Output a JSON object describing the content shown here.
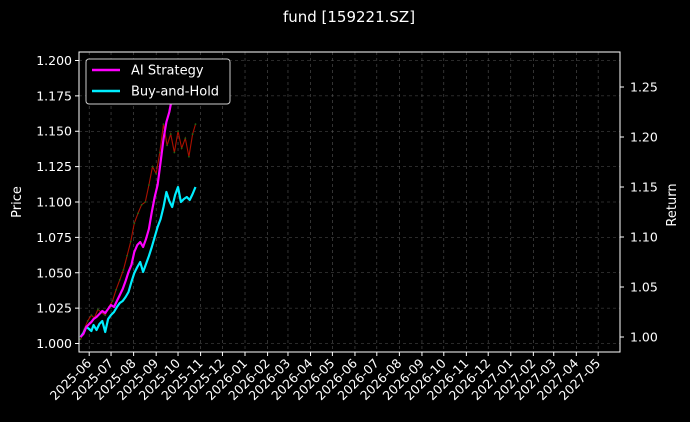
{
  "chart_data": {
    "type": "line",
    "title": "fund [159221.SZ]",
    "ylabel_left": "Price",
    "ylabel_right": "Return",
    "xlabel": "",
    "grid": true,
    "legend_position": "top-left",
    "left_ylim": [
      0.994,
      1.206
    ],
    "left_yticks": [
      1.0,
      1.025,
      1.05,
      1.075,
      1.1,
      1.125,
      1.15,
      1.175,
      1.2
    ],
    "left_ytick_labels": [
      "1.000",
      "1.025",
      "1.050",
      "1.075",
      "1.100",
      "1.125",
      "1.150",
      "1.175",
      "1.200"
    ],
    "right_ylim": [
      0.985,
      1.285
    ],
    "right_yticks": [
      1.0,
      1.05,
      1.1,
      1.15,
      1.2,
      1.25
    ],
    "right_ytick_labels": [
      "1.00",
      "1.05",
      "1.10",
      "1.15",
      "1.20",
      "1.25"
    ],
    "x_ticks": [
      "2025-06",
      "2025-07",
      "2025-08",
      "2025-09",
      "2025-10",
      "2025-11",
      "2025-12",
      "2026-01",
      "2026-02",
      "2026-03",
      "2026-04",
      "2026-05",
      "2026-06",
      "2026-07",
      "2026-08",
      "2026-09",
      "2026-10",
      "2026-11",
      "2026-12",
      "2027-01",
      "2027-02",
      "2027-03",
      "2027-04",
      "2027-05"
    ],
    "x_range": [
      "2025-05-18",
      "2027-05-31"
    ],
    "series": [
      {
        "name": "AI Strategy",
        "axis": "right",
        "color": "#ff00ff",
        "points": [
          [
            "2025-05-20",
            1.0
          ],
          [
            "2025-05-24",
            1.003
          ],
          [
            "2025-05-28",
            1.01
          ],
          [
            "2025-06-01",
            1.013
          ],
          [
            "2025-06-04",
            1.015
          ],
          [
            "2025-06-07",
            1.018
          ],
          [
            "2025-06-11",
            1.02
          ],
          [
            "2025-06-15",
            1.023
          ],
          [
            "2025-06-19",
            1.026
          ],
          [
            "2025-06-23",
            1.024
          ],
          [
            "2025-06-27",
            1.028
          ],
          [
            "2025-07-01",
            1.032
          ],
          [
            "2025-07-05",
            1.03
          ],
          [
            "2025-07-09",
            1.036
          ],
          [
            "2025-07-13",
            1.042
          ],
          [
            "2025-07-17",
            1.048
          ],
          [
            "2025-07-21",
            1.056
          ],
          [
            "2025-07-25",
            1.065
          ],
          [
            "2025-07-29",
            1.072
          ],
          [
            "2025-08-02",
            1.085
          ],
          [
            "2025-08-06",
            1.092
          ],
          [
            "2025-08-10",
            1.095
          ],
          [
            "2025-08-14",
            1.09
          ],
          [
            "2025-08-18",
            1.098
          ],
          [
            "2025-08-22",
            1.108
          ],
          [
            "2025-08-26",
            1.125
          ],
          [
            "2025-08-30",
            1.14
          ],
          [
            "2025-09-03",
            1.152
          ],
          [
            "2025-09-07",
            1.175
          ],
          [
            "2025-09-11",
            1.198
          ],
          [
            "2025-09-15",
            1.215
          ],
          [
            "2025-09-19",
            1.225
          ],
          [
            "2025-09-23",
            1.24
          ],
          [
            "2025-09-27",
            1.247
          ],
          [
            "2025-09-30",
            1.25
          ]
        ]
      },
      {
        "name": "Buy-and-Hold",
        "axis": "right",
        "color": "#00eeff",
        "points": [
          [
            "2025-05-20",
            1.0
          ],
          [
            "2025-05-24",
            1.004
          ],
          [
            "2025-05-28",
            1.01
          ],
          [
            "2025-06-01",
            1.008
          ],
          [
            "2025-06-04",
            1.006
          ],
          [
            "2025-06-07",
            1.012
          ],
          [
            "2025-06-11",
            1.007
          ],
          [
            "2025-06-15",
            1.013
          ],
          [
            "2025-06-19",
            1.016
          ],
          [
            "2025-06-23",
            1.005
          ],
          [
            "2025-06-27",
            1.018
          ],
          [
            "2025-07-01",
            1.022
          ],
          [
            "2025-07-05",
            1.025
          ],
          [
            "2025-07-09",
            1.03
          ],
          [
            "2025-07-13",
            1.034
          ],
          [
            "2025-07-17",
            1.036
          ],
          [
            "2025-07-21",
            1.04
          ],
          [
            "2025-07-25",
            1.045
          ],
          [
            "2025-07-29",
            1.055
          ],
          [
            "2025-08-02",
            1.064
          ],
          [
            "2025-08-06",
            1.07
          ],
          [
            "2025-08-10",
            1.075
          ],
          [
            "2025-08-14",
            1.065
          ],
          [
            "2025-08-18",
            1.073
          ],
          [
            "2025-08-22",
            1.081
          ],
          [
            "2025-08-26",
            1.09
          ],
          [
            "2025-08-30",
            1.1
          ],
          [
            "2025-09-03",
            1.11
          ],
          [
            "2025-09-07",
            1.118
          ],
          [
            "2025-09-11",
            1.13
          ],
          [
            "2025-09-15",
            1.145
          ],
          [
            "2025-09-19",
            1.136
          ],
          [
            "2025-09-23",
            1.13
          ],
          [
            "2025-09-27",
            1.142
          ],
          [
            "2025-10-01",
            1.15
          ],
          [
            "2025-10-05",
            1.135
          ],
          [
            "2025-10-09",
            1.138
          ],
          [
            "2025-10-13",
            1.14
          ],
          [
            "2025-10-17",
            1.137
          ],
          [
            "2025-10-21",
            1.143
          ],
          [
            "2025-10-25",
            1.15
          ]
        ]
      },
      {
        "name": "Price",
        "axis": "left",
        "color": "#aa1100",
        "points": [
          [
            "2025-05-20",
            1.003
          ],
          [
            "2025-05-25",
            1.01
          ],
          [
            "2025-05-30",
            1.016
          ],
          [
            "2025-06-04",
            1.02
          ],
          [
            "2025-06-08",
            1.018
          ],
          [
            "2025-06-13",
            1.024
          ],
          [
            "2025-06-18",
            1.022
          ],
          [
            "2025-06-23",
            1.02
          ],
          [
            "2025-06-28",
            1.026
          ],
          [
            "2025-07-03",
            1.03
          ],
          [
            "2025-07-08",
            1.038
          ],
          [
            "2025-07-13",
            1.045
          ],
          [
            "2025-07-18",
            1.052
          ],
          [
            "2025-07-23",
            1.062
          ],
          [
            "2025-07-28",
            1.072
          ],
          [
            "2025-08-02",
            1.085
          ],
          [
            "2025-08-07",
            1.092
          ],
          [
            "2025-08-12",
            1.098
          ],
          [
            "2025-08-17",
            1.1
          ],
          [
            "2025-08-22",
            1.112
          ],
          [
            "2025-08-27",
            1.125
          ],
          [
            "2025-09-01",
            1.12
          ],
          [
            "2025-09-06",
            1.135
          ],
          [
            "2025-09-11",
            1.155
          ],
          [
            "2025-09-16",
            1.14
          ],
          [
            "2025-09-21",
            1.148
          ],
          [
            "2025-09-26",
            1.135
          ],
          [
            "2025-10-01",
            1.15
          ],
          [
            "2025-10-06",
            1.138
          ],
          [
            "2025-10-11",
            1.145
          ],
          [
            "2025-10-16",
            1.132
          ],
          [
            "2025-10-21",
            1.148
          ],
          [
            "2025-10-25",
            1.155
          ]
        ]
      }
    ]
  }
}
